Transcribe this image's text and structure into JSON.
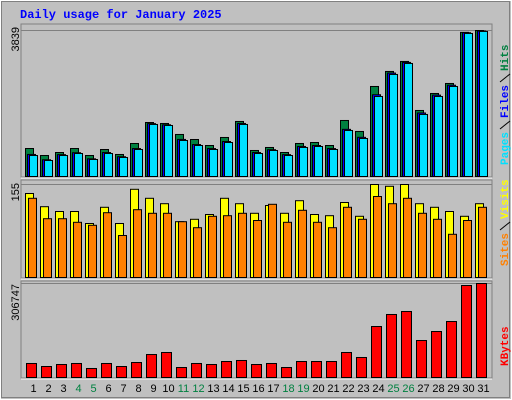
{
  "chart_data": [
    {
      "type": "bar",
      "title": "Daily usage for January 2025",
      "ylim": [
        0,
        3839
      ],
      "yticks": [
        3839
      ],
      "series": [
        {
          "name": "Hits",
          "color": "#008040",
          "values": [
            736,
            552,
            631,
            736,
            552,
            710,
            579,
            868,
            1420,
            1394,
            1105,
            973,
            815,
            1026,
            1447,
            684,
            763,
            631,
            868,
            894,
            815,
            1473,
            1184,
            2367,
            2762,
            3025,
            1736,
            2183,
            2446,
            3790,
            3839
          ]
        },
        {
          "name": "Files",
          "color": "#0000ff",
          "values": [
            580,
            440,
            575,
            625,
            465,
            630,
            520,
            735,
            1390,
            1360,
            975,
            840,
            735,
            920,
            1395,
            630,
            705,
            575,
            790,
            815,
            735,
            1240,
            1030,
            2150,
            2720,
            3000,
            1670,
            2140,
            2400,
            3780,
            3825
          ]
        },
        {
          "name": "Pages",
          "color": "#00e0ff",
          "values": [
            552,
            421,
            552,
            605,
            447,
            605,
            500,
            710,
            1368,
            1341,
            947,
            815,
            710,
            894,
            1368,
            605,
            684,
            552,
            763,
            789,
            710,
            1210,
            999,
            2104,
            2683,
            2972,
            1631,
            2104,
            2367,
            3761,
            3814
          ]
        }
      ]
    },
    {
      "type": "bar",
      "ylim": [
        0,
        155
      ],
      "yticks": [
        155
      ],
      "series": [
        {
          "name": "Visits",
          "color": "#ffff00",
          "values": [
            140,
            118,
            110,
            110,
            90,
            117,
            90,
            147,
            132,
            123,
            93,
            97,
            105,
            132,
            123,
            107,
            120,
            107,
            128,
            105,
            103,
            125,
            102,
            155,
            152,
            155,
            123,
            117,
            110,
            102,
            123
          ]
        },
        {
          "name": "Sites",
          "color": "#ff8000",
          "values": [
            132,
            98,
            98,
            92,
            87,
            108,
            70,
            113,
            107,
            107,
            93,
            83,
            102,
            103,
            107,
            95,
            122,
            92,
            112,
            92,
            83,
            117,
            97,
            135,
            123,
            132,
            107,
            97,
            72,
            95,
            117
          ]
        }
      ]
    },
    {
      "type": "bar",
      "categories": [
        "1",
        "2",
        "3",
        "4",
        "5",
        "6",
        "7",
        "8",
        "9",
        "10",
        "11",
        "12",
        "13",
        "14",
        "15",
        "16",
        "17",
        "18",
        "19",
        "20",
        "21",
        "22",
        "23",
        "24",
        "25",
        "26",
        "27",
        "28",
        "29",
        "30",
        "31"
      ],
      "category_colors": [
        "#000000",
        "#000000",
        "#000000",
        "#008040",
        "#008040",
        "#000000",
        "#000000",
        "#000000",
        "#000000",
        "#000000",
        "#008040",
        "#008040",
        "#000000",
        "#000000",
        "#000000",
        "#000000",
        "#000000",
        "#008040",
        "#008040",
        "#000000",
        "#000000",
        "#000000",
        "#000000",
        "#000000",
        "#008040",
        "#008040",
        "#000000",
        "#000000",
        "#000000",
        "#000000",
        "#000000"
      ],
      "ylim": [
        0,
        306747
      ],
      "yticks": [
        306747
      ],
      "series": [
        {
          "name": "KBytes",
          "color": "#ff0000",
          "values": [
            45700,
            35900,
            42400,
            45700,
            29400,
            45700,
            35900,
            48900,
            75000,
            81600,
            32600,
            45700,
            42400,
            52200,
            55500,
            42400,
            45700,
            32600,
            52200,
            52200,
            52200,
            81600,
            65300,
            166400,
            205600,
            215400,
            120700,
            150100,
            182700,
            300200,
            306747
          ]
        }
      ]
    }
  ]
}
